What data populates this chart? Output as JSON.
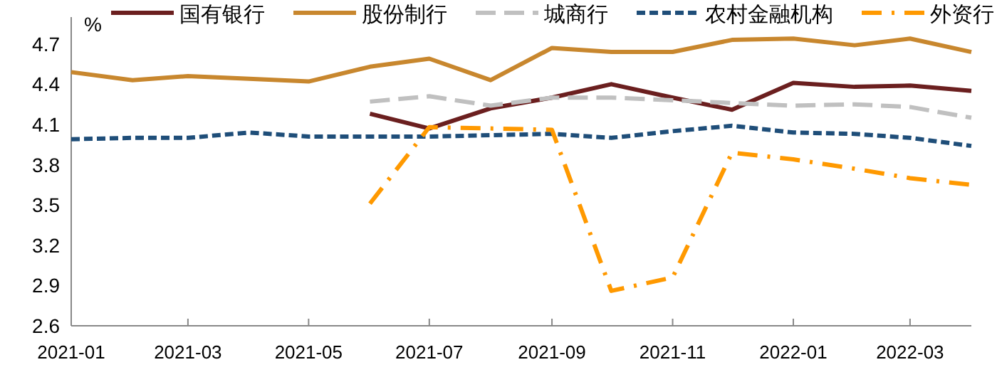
{
  "chart_data": {
    "type": "line",
    "ylabel": "%",
    "x": [
      "2021-01",
      "2021-02",
      "2021-03",
      "2021-04",
      "2021-05",
      "2021-06",
      "2021-07",
      "2021-08",
      "2021-09",
      "2021-10",
      "2021-11",
      "2021-12",
      "2022-01",
      "2022-02",
      "2022-03",
      "2022-04"
    ],
    "series": [
      {
        "name": "国有银行",
        "color": "#6b1f1f",
        "line_style": "solid",
        "values": [
          null,
          null,
          null,
          null,
          null,
          4.18,
          4.07,
          4.22,
          4.3,
          4.4,
          4.3,
          4.21,
          4.41,
          4.38,
          4.39,
          4.35
        ]
      },
      {
        "name": "股份制行",
        "color": "#c8872e",
        "line_style": "solid",
        "values": [
          4.49,
          4.43,
          4.46,
          4.44,
          4.42,
          4.53,
          4.59,
          4.43,
          4.67,
          4.64,
          4.64,
          4.73,
          4.74,
          4.69,
          4.74,
          4.64
        ]
      },
      {
        "name": "城商行",
        "color": "#c0c0c0",
        "line_style": "dashed",
        "values": [
          null,
          null,
          null,
          null,
          null,
          4.27,
          4.31,
          4.24,
          4.3,
          4.3,
          4.28,
          4.26,
          4.24,
          4.25,
          4.23,
          4.15
        ]
      },
      {
        "name": "农村金融机构",
        "color": "#1f4e79",
        "line_style": "dotted",
        "values": [
          3.99,
          4.0,
          4.0,
          4.04,
          4.01,
          4.01,
          4.01,
          4.02,
          4.03,
          4.0,
          4.05,
          4.09,
          4.04,
          4.03,
          4.0,
          3.94
        ]
      },
      {
        "name": "外资行",
        "color": "#ff9900",
        "line_style": "dashdot",
        "values": [
          null,
          null,
          null,
          null,
          null,
          3.51,
          4.08,
          4.07,
          4.06,
          2.86,
          2.96,
          3.89,
          3.84,
          3.77,
          3.7,
          3.65
        ]
      }
    ],
    "xlim": [
      "2021-01",
      "2022-04"
    ],
    "xticks": [
      "2021-01",
      "2021-03",
      "2021-05",
      "2021-07",
      "2021-09",
      "2021-11",
      "2022-01",
      "2022-03"
    ],
    "ylim": [
      2.6,
      4.9
    ],
    "yticks": [
      {
        "value": 2.6,
        "label": "2.6"
      },
      {
        "value": 2.9,
        "label": "2.9"
      },
      {
        "value": 3.2,
        "label": "3.2"
      },
      {
        "value": 3.5,
        "label": "3.5"
      },
      {
        "value": 3.8,
        "label": "3.8"
      },
      {
        "value": 4.1,
        "label": "4.1"
      },
      {
        "value": 4.4,
        "label": "4.4"
      },
      {
        "value": 4.7,
        "label": "4.7"
      }
    ],
    "grid": false,
    "legend": "top",
    "marker": "none"
  }
}
